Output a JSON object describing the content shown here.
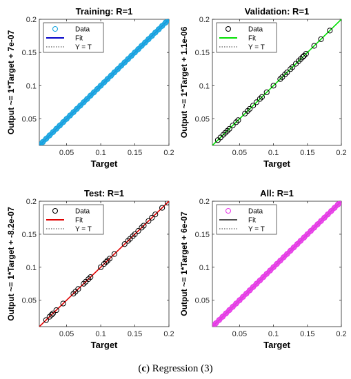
{
  "caption": {
    "letter": "c",
    "text": "Regression (3)",
    "open": "(",
    "close": ")"
  },
  "chart_data": [
    {
      "type": "scatter",
      "title": "Training: R=1",
      "xlabel": "Target",
      "ylabel": "Output ~= 1*Target + 7e-07",
      "xlim": [
        0.01,
        0.2
      ],
      "ylim": [
        0.01,
        0.2
      ],
      "xticks": [
        "0.05",
        "0.1",
        "0.15",
        "0.2"
      ],
      "yticks": [
        "0.05",
        "0.1",
        "0.15",
        "0.2"
      ],
      "legend": {
        "placement": "top-left",
        "entries": [
          "Data",
          "Fit",
          "Y = T"
        ]
      },
      "marker_color": "#19a6e0",
      "fit_color": "#0000c8",
      "dense": true,
      "series": [
        {
          "name": "Data",
          "x": [
            0.011,
            0.015,
            0.02,
            0.025,
            0.03,
            0.035,
            0.04,
            0.045,
            0.05,
            0.055,
            0.06,
            0.065,
            0.07,
            0.075,
            0.08,
            0.085,
            0.09,
            0.095,
            0.1,
            0.105,
            0.11,
            0.115,
            0.12,
            0.125,
            0.13,
            0.135,
            0.14,
            0.145,
            0.15,
            0.155,
            0.16,
            0.165,
            0.17,
            0.175,
            0.18,
            0.185,
            0.19,
            0.195,
            0.2,
            0.201
          ],
          "y": [
            0.011,
            0.015,
            0.02,
            0.025,
            0.03,
            0.035,
            0.04,
            0.045,
            0.05,
            0.055,
            0.06,
            0.065,
            0.07,
            0.075,
            0.08,
            0.085,
            0.09,
            0.095,
            0.1,
            0.105,
            0.11,
            0.115,
            0.12,
            0.125,
            0.13,
            0.135,
            0.14,
            0.145,
            0.15,
            0.155,
            0.16,
            0.165,
            0.17,
            0.175,
            0.18,
            0.185,
            0.19,
            0.195,
            0.2,
            0.201
          ]
        }
      ]
    },
    {
      "type": "scatter",
      "title": "Validation: R=1",
      "xlabel": "Target",
      "ylabel": "Output ~= 1*Target + 1.1e-06",
      "xlim": [
        0.01,
        0.2
      ],
      "ylim": [
        0.01,
        0.2
      ],
      "xticks": [
        "0.05",
        "0.1",
        "0.15",
        "0.2"
      ],
      "yticks": [
        "0.05",
        "0.1",
        "0.15",
        "0.2"
      ],
      "legend": {
        "placement": "top-left",
        "entries": [
          "Data",
          "Fit",
          "Y = T"
        ]
      },
      "marker_color": "#000000",
      "fit_color": "#00e000",
      "dense": false,
      "series": [
        {
          "name": "Data",
          "x": [
            0.018,
            0.022,
            0.026,
            0.029,
            0.032,
            0.035,
            0.04,
            0.045,
            0.048,
            0.058,
            0.062,
            0.065,
            0.07,
            0.075,
            0.08,
            0.083,
            0.09,
            0.1,
            0.11,
            0.113,
            0.117,
            0.12,
            0.125,
            0.128,
            0.133,
            0.137,
            0.14,
            0.143,
            0.145,
            0.148,
            0.16,
            0.17,
            0.183
          ],
          "y": [
            0.018,
            0.022,
            0.026,
            0.029,
            0.032,
            0.035,
            0.04,
            0.045,
            0.048,
            0.058,
            0.062,
            0.065,
            0.07,
            0.075,
            0.08,
            0.083,
            0.09,
            0.1,
            0.11,
            0.113,
            0.117,
            0.12,
            0.125,
            0.128,
            0.133,
            0.137,
            0.14,
            0.143,
            0.145,
            0.148,
            0.16,
            0.17,
            0.183
          ]
        }
      ]
    },
    {
      "type": "scatter",
      "title": "Test: R=1",
      "xlabel": "Target",
      "ylabel": "Output ~= 1*Target + -8.2e-07",
      "xlim": [
        0.01,
        0.2
      ],
      "ylim": [
        0.01,
        0.2
      ],
      "xticks": [
        "0.05",
        "0.1",
        "0.15",
        "0.2"
      ],
      "yticks": [
        "0.05",
        "0.1",
        "0.15",
        "0.2"
      ],
      "legend": {
        "placement": "top-left",
        "entries": [
          "Data",
          "Fit",
          "Y = T"
        ]
      },
      "marker_color": "#000000",
      "fit_color": "#e00000",
      "dense": false,
      "series": [
        {
          "name": "Data",
          "x": [
            0.02,
            0.025,
            0.028,
            0.03,
            0.035,
            0.045,
            0.06,
            0.063,
            0.067,
            0.075,
            0.078,
            0.082,
            0.085,
            0.1,
            0.105,
            0.108,
            0.11,
            0.113,
            0.12,
            0.135,
            0.14,
            0.143,
            0.147,
            0.15,
            0.155,
            0.16,
            0.163,
            0.17,
            0.175,
            0.18,
            0.19,
            0.198
          ],
          "y": [
            0.02,
            0.025,
            0.028,
            0.03,
            0.035,
            0.045,
            0.06,
            0.063,
            0.067,
            0.075,
            0.078,
            0.082,
            0.085,
            0.1,
            0.105,
            0.108,
            0.11,
            0.113,
            0.12,
            0.135,
            0.14,
            0.143,
            0.147,
            0.15,
            0.155,
            0.16,
            0.163,
            0.17,
            0.175,
            0.18,
            0.19,
            0.198
          ]
        }
      ]
    },
    {
      "type": "scatter",
      "title": "All: R=1",
      "xlabel": "Target",
      "ylabel": "Output ~= 1*Target + 6e-07",
      "xlim": [
        0.01,
        0.2
      ],
      "ylim": [
        0.01,
        0.2
      ],
      "xticks": [
        "0.05",
        "0.1",
        "0.15",
        "0.2"
      ],
      "yticks": [
        "0.05",
        "0.1",
        "0.15",
        "0.2"
      ],
      "legend": {
        "placement": "top-left",
        "entries": [
          "Data",
          "Fit",
          "Y = T"
        ]
      },
      "marker_color": "#e83ce8",
      "fit_color": "#505050",
      "dense": true,
      "series": [
        {
          "name": "Data",
          "x": [
            0.011,
            0.015,
            0.02,
            0.025,
            0.03,
            0.035,
            0.04,
            0.045,
            0.05,
            0.055,
            0.06,
            0.065,
            0.07,
            0.075,
            0.08,
            0.085,
            0.09,
            0.095,
            0.1,
            0.105,
            0.11,
            0.115,
            0.12,
            0.125,
            0.13,
            0.135,
            0.14,
            0.145,
            0.15,
            0.155,
            0.16,
            0.165,
            0.17,
            0.175,
            0.18,
            0.185,
            0.19,
            0.195,
            0.2,
            0.202
          ],
          "y": [
            0.011,
            0.015,
            0.02,
            0.025,
            0.03,
            0.035,
            0.04,
            0.045,
            0.05,
            0.055,
            0.06,
            0.065,
            0.07,
            0.075,
            0.08,
            0.085,
            0.09,
            0.095,
            0.1,
            0.105,
            0.11,
            0.115,
            0.12,
            0.125,
            0.13,
            0.135,
            0.14,
            0.145,
            0.15,
            0.155,
            0.16,
            0.165,
            0.17,
            0.175,
            0.18,
            0.185,
            0.19,
            0.195,
            0.2,
            0.202
          ]
        }
      ]
    }
  ]
}
